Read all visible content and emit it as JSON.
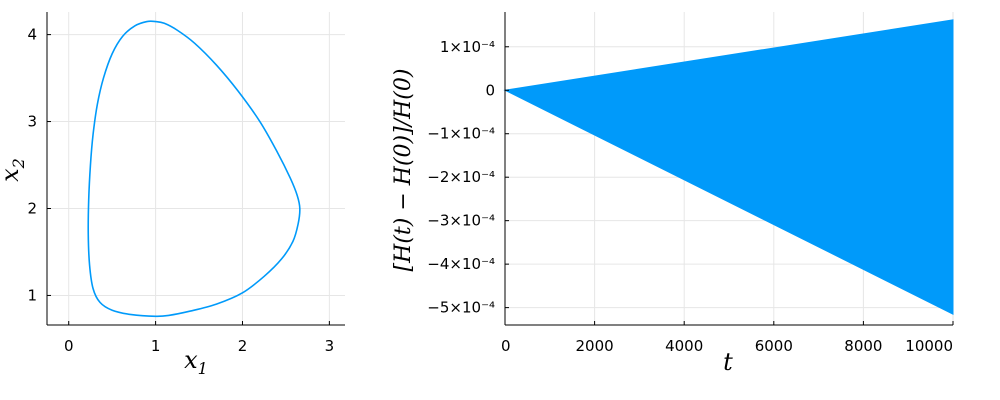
{
  "colors": {
    "series": "#009AFA",
    "grid": "#E6E6E6",
    "axis": "#000000"
  },
  "chart_data": [
    {
      "type": "line",
      "title": "",
      "xlabel": "x",
      "xlabel_sub": "1",
      "ylabel": "x",
      "ylabel_sub": "2",
      "xlim": [
        -0.25,
        3.18
      ],
      "ylim": [
        0.66,
        4.26
      ],
      "xticks": [
        0,
        1,
        2,
        3
      ],
      "xtick_labels": [
        "0",
        "1",
        "2",
        "3"
      ],
      "yticks": [
        1,
        2,
        3,
        4
      ],
      "ytick_labels": [
        "1",
        "2",
        "3",
        "4"
      ],
      "grid": true,
      "series": [
        {
          "x": [
            1.0,
            0.72,
            0.5,
            0.36,
            0.28,
            0.24,
            0.225,
            0.23,
            0.25,
            0.28,
            0.33,
            0.4,
            0.5,
            0.62,
            0.76,
            0.9,
            1.0,
            1.1,
            1.25,
            1.45,
            1.7,
            1.95,
            2.2,
            2.4,
            2.55,
            2.63,
            2.66,
            2.64,
            2.58,
            2.45,
            2.25,
            2.0,
            1.7,
            1.4,
            1.15,
            1.0
          ],
          "y": [
            0.76,
            0.78,
            0.83,
            0.92,
            1.08,
            1.35,
            1.7,
            2.1,
            2.5,
            2.85,
            3.2,
            3.5,
            3.78,
            3.98,
            4.1,
            4.15,
            4.15,
            4.13,
            4.05,
            3.9,
            3.65,
            3.35,
            3.0,
            2.65,
            2.35,
            2.15,
            2.0,
            1.82,
            1.62,
            1.42,
            1.22,
            1.03,
            0.9,
            0.82,
            0.77,
            0.76
          ]
        }
      ]
    },
    {
      "type": "area",
      "title": "",
      "xlabel": "t",
      "ylabel": "[H(t) − H(0)]/H(0)",
      "xlim": [
        0,
        10000
      ],
      "ylim": [
        -0.00054,
        0.00018
      ],
      "xticks": [
        0,
        2000,
        4000,
        6000,
        8000,
        10000
      ],
      "xtick_labels": [
        "0",
        "2000",
        "4000",
        "6000",
        "8000",
        "10000"
      ],
      "yticks": [
        0.0001,
        0,
        -0.0001,
        -0.0002,
        -0.0003,
        -0.0004,
        -0.0005
      ],
      "ytick_labels": [
        "1×10⁻⁴",
        "0",
        "−1×10⁻⁴",
        "−2×10⁻⁴",
        "−3×10⁻⁴",
        "−4×10⁻⁴",
        "−5×10⁻⁴"
      ],
      "grid": true,
      "series": [
        {
          "x": [
            0,
            10000
          ],
          "upper": [
            0.0,
            0.000162
          ],
          "lower": [
            0.0,
            -0.000515
          ]
        }
      ]
    }
  ]
}
